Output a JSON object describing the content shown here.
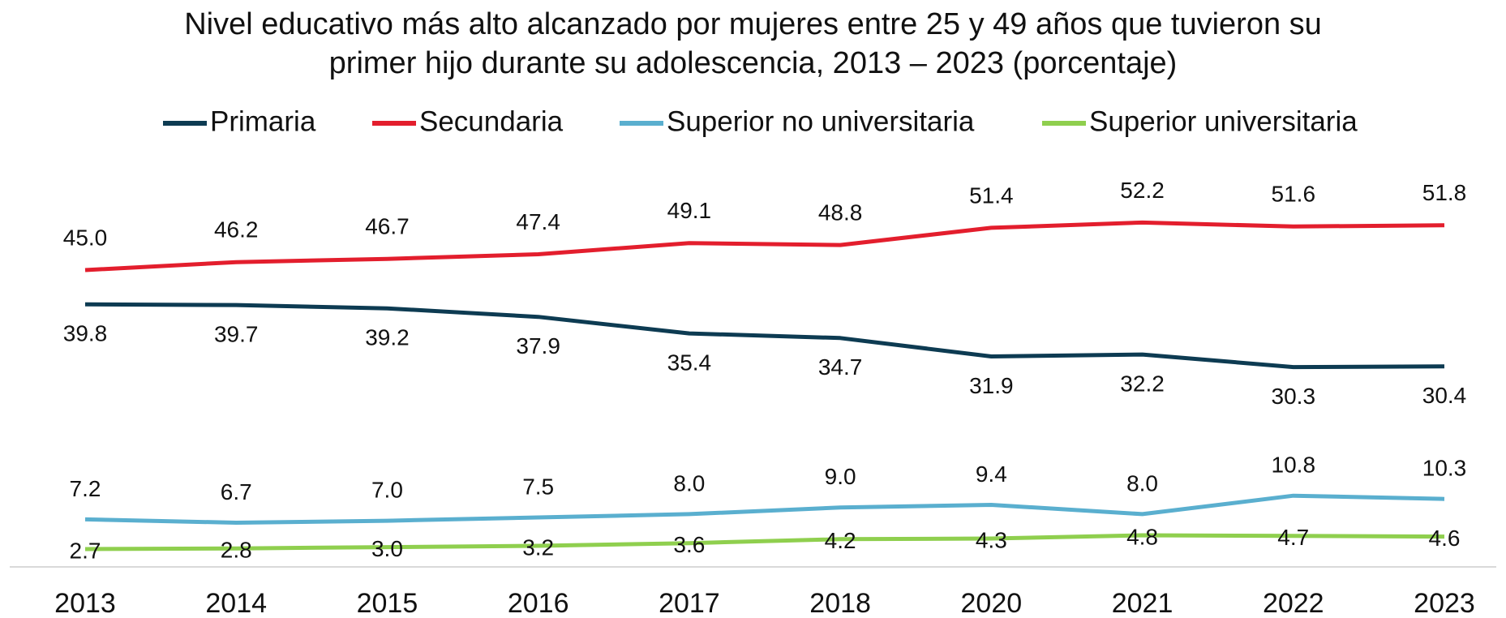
{
  "chart_data": {
    "type": "line",
    "title": "Nivel educativo más alto alcanzado por mujeres entre 25 y 49 años que tuvieron su primer hijo durante su adolescencia, 2013 – 2023 (porcentaje)",
    "categories": [
      "2013",
      "2014",
      "2015",
      "2016",
      "2017",
      "2018",
      "2020",
      "2021",
      "2022",
      "2023"
    ],
    "ylim": [
      0,
      60
    ],
    "series": [
      {
        "name": "Primaria",
        "color": "#0d3b52",
        "values": [
          39.8,
          39.7,
          39.2,
          37.9,
          35.4,
          34.7,
          31.9,
          32.2,
          30.3,
          30.4
        ],
        "value_labels": [
          "39.8",
          "39.7",
          "39.2",
          "37.9",
          "35.4",
          "34.7",
          "31.9",
          "32.2",
          "30.3",
          "30.4"
        ]
      },
      {
        "name": "Secundaria",
        "color": "#e31e2d",
        "values": [
          45.0,
          46.2,
          46.7,
          47.4,
          49.1,
          48.8,
          51.4,
          52.2,
          51.6,
          51.8
        ],
        "value_labels": [
          "45.0",
          "46.2",
          "46.7",
          "47.4",
          "49.1",
          "48.8",
          "51.4",
          "52.2",
          "51.6",
          "51.8"
        ]
      },
      {
        "name": "Superior no universitaria",
        "color": "#5aafcf",
        "values": [
          7.2,
          6.7,
          7.0,
          7.5,
          8.0,
          9.0,
          9.4,
          8.0,
          10.8,
          10.3
        ],
        "value_labels": [
          "7.2",
          "6.7",
          "7.0",
          "7.5",
          "8.0",
          "9.0",
          "9.4",
          "8.0",
          "10.8",
          "10.3"
        ]
      },
      {
        "name": "Superior universitaria",
        "color": "#8fcf4e",
        "values": [
          2.7,
          2.8,
          3.0,
          3.2,
          3.6,
          4.2,
          4.3,
          4.8,
          4.7,
          4.6
        ],
        "value_labels": [
          "2.7",
          "2.8",
          "3.0",
          "3.2",
          "3.6",
          "4.2",
          "4.3",
          "4.8",
          "4.7",
          "4.6"
        ]
      }
    ]
  }
}
